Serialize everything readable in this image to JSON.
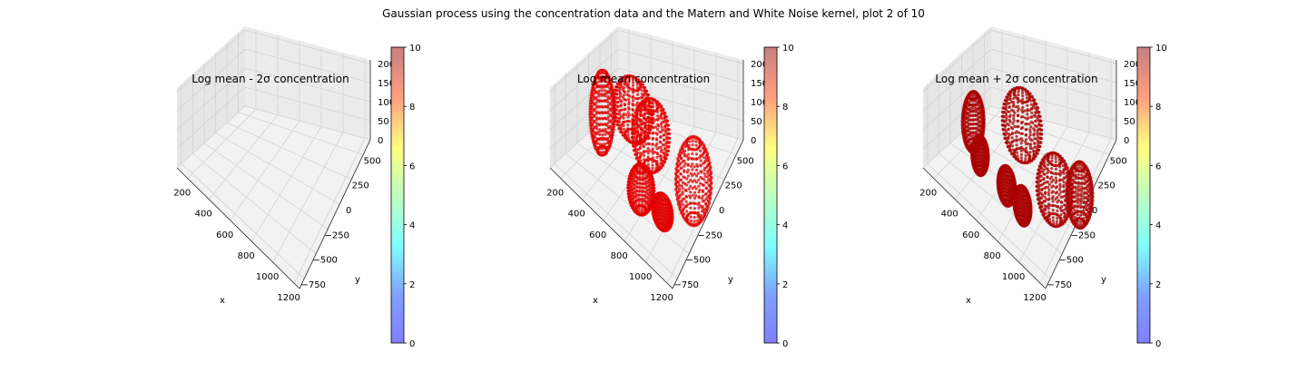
{
  "suptitle": "Gaussian process using the  concentration data and the Matern and White Noise kernel, plot 2 of 10",
  "chart_data": [
    {
      "type": "scatter",
      "projection": "3d",
      "title": "Log mean - 2σ concentration",
      "xlabel": "x",
      "ylabel": "y",
      "zlabel": "",
      "xticks": [
        "200",
        "400",
        "600",
        "800",
        "1000",
        "1200"
      ],
      "yticks": [
        "−750",
        "−500",
        "−250",
        "0",
        "250",
        "500"
      ],
      "zticks": [
        "0",
        "50",
        "100",
        "150",
        "200"
      ],
      "xlim": [
        100,
        1250
      ],
      "ylim": [
        -850,
        650
      ],
      "zlim": [
        0,
        210
      ],
      "point_color": "#cc0000",
      "clusters": [],
      "colorbar": {
        "ticks": [
          "0",
          "2",
          "4",
          "6",
          "8",
          "10"
        ],
        "range": [
          0,
          10
        ],
        "cmap": "jet",
        "alpha": 0.3
      }
    },
    {
      "type": "scatter",
      "projection": "3d",
      "title": "Log mean concentration",
      "xlabel": "x",
      "ylabel": "y",
      "zlabel": "",
      "xticks": [
        "200",
        "400",
        "600",
        "800",
        "1000",
        "1200"
      ],
      "yticks": [
        "−750",
        "−500",
        "−250",
        "0",
        "250",
        "500"
      ],
      "zticks": [
        "0",
        "50",
        "100",
        "150",
        "200"
      ],
      "xlim": [
        100,
        1250
      ],
      "ylim": [
        -850,
        650
      ],
      "zlim": [
        0,
        210
      ],
      "point_color": "#e20000",
      "clusters": [
        {
          "x": 250,
          "y": -50,
          "z0": 0,
          "z1": 200,
          "rx": 80,
          "ry": 200
        },
        {
          "x": 430,
          "y": 200,
          "z0": 60,
          "z1": 200,
          "rx": 150,
          "ry": 250
        },
        {
          "x": 620,
          "y": 150,
          "z0": 40,
          "z1": 200,
          "rx": 130,
          "ry": 280
        },
        {
          "x": 720,
          "y": -300,
          "z0": 0,
          "z1": 110,
          "rx": 90,
          "ry": 200
        },
        {
          "x": 1000,
          "y": 200,
          "z0": 0,
          "z1": 200,
          "rx": 120,
          "ry": 280
        },
        {
          "x": 900,
          "y": -250,
          "z0": 0,
          "z1": 80,
          "rx": 80,
          "ry": 120
        }
      ],
      "colorbar": {
        "ticks": [
          "0",
          "2",
          "4",
          "6",
          "8",
          "10"
        ],
        "range": [
          0,
          10
        ],
        "cmap": "jet",
        "alpha": 0.3
      }
    },
    {
      "type": "scatter",
      "projection": "3d",
      "title": "Log mean + 2σ concentration",
      "xlabel": "x",
      "ylabel": "y",
      "zlabel": "",
      "xticks": [
        "200",
        "400",
        "600",
        "800",
        "1000",
        "1200"
      ],
      "yticks": [
        "−750",
        "−500",
        "−250",
        "0",
        "250",
        "500"
      ],
      "zticks": [
        "0",
        "50",
        "100",
        "150",
        "200"
      ],
      "xlim": [
        100,
        1250
      ],
      "ylim": [
        -850,
        650
      ],
      "zlim": [
        0,
        210
      ],
      "point_color": "#aa0000",
      "clusters": [
        {
          "x": 230,
          "y": -50,
          "z0": 0,
          "z1": 140,
          "rx": 70,
          "ry": 180
        },
        {
          "x": 380,
          "y": -250,
          "z0": 0,
          "z1": 90,
          "rx": 60,
          "ry": 120
        },
        {
          "x": 560,
          "y": 250,
          "z0": 40,
          "z1": 200,
          "rx": 150,
          "ry": 260
        },
        {
          "x": 650,
          "y": -300,
          "z0": 0,
          "z1": 90,
          "rx": 70,
          "ry": 110
        },
        {
          "x": 950,
          "y": 50,
          "z0": 0,
          "z1": 160,
          "rx": 130,
          "ry": 250
        },
        {
          "x": 820,
          "y": -350,
          "z0": 0,
          "z1": 90,
          "rx": 70,
          "ry": 100
        },
        {
          "x": 1080,
          "y": 300,
          "z0": 0,
          "z1": 150,
          "rx": 90,
          "ry": 200
        }
      ],
      "colorbar": {
        "ticks": [
          "0",
          "2",
          "4",
          "6",
          "8",
          "10"
        ],
        "range": [
          0,
          10
        ],
        "cmap": "jet",
        "alpha": 0.3
      }
    }
  ]
}
